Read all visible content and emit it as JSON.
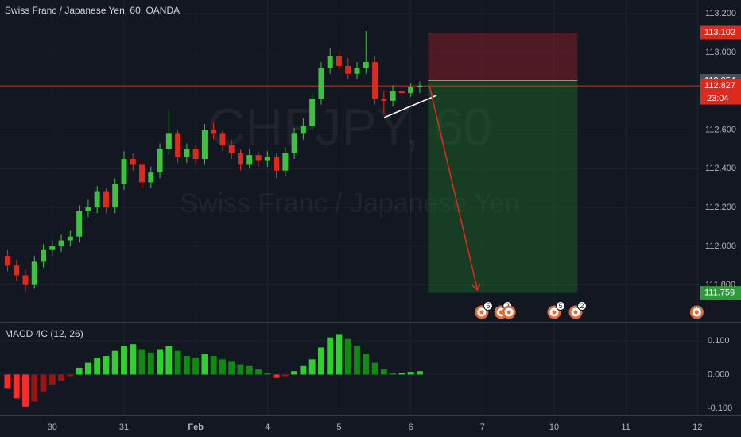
{
  "title": "Swiss Franc / Japanese Yen, 60, OANDA",
  "watermark": {
    "symbol": "CHFJPY, 60",
    "description": "Swiss Franc / Japanese Yen"
  },
  "countdown": "23:04",
  "chart_data": [
    {
      "type": "candlestick",
      "x": [
        -0.625,
        -0.5,
        -0.375,
        -0.25,
        -0.125,
        0,
        0.125,
        0.25,
        0.375,
        0.5,
        0.625,
        0.75,
        0.875,
        1,
        1.125,
        1.25,
        1.375,
        1.5,
        1.625,
        1.75,
        1.875,
        2,
        2.125,
        2.25,
        2.375,
        2.5,
        2.625,
        2.75,
        2.875,
        3,
        3.125,
        3.25,
        3.375,
        3.5,
        3.625,
        3.75,
        3.875,
        4,
        4.125,
        4.25,
        4.375,
        4.5,
        4.625,
        4.75,
        4.875,
        5,
        5.125
      ],
      "open": [
        111.95,
        111.9,
        111.85,
        111.8,
        111.92,
        111.98,
        112.0,
        112.03,
        112.05,
        112.18,
        112.2,
        112.28,
        112.2,
        112.32,
        112.45,
        112.42,
        112.33,
        112.38,
        112.5,
        112.58,
        112.46,
        112.5,
        112.45,
        112.6,
        112.58,
        112.52,
        112.48,
        112.42,
        112.47,
        112.44,
        112.46,
        112.39,
        112.48,
        112.58,
        112.62,
        112.76,
        112.92,
        112.98,
        112.93,
        112.89,
        112.92,
        112.95,
        112.76,
        112.75,
        112.8,
        112.79,
        112.82
      ],
      "high": [
        111.98,
        111.93,
        111.88,
        111.95,
        112.01,
        112.03,
        112.06,
        112.08,
        112.21,
        112.24,
        112.31,
        112.3,
        112.35,
        112.49,
        112.48,
        112.44,
        112.41,
        112.53,
        112.7,
        112.6,
        112.53,
        112.52,
        112.63,
        112.64,
        112.6,
        112.55,
        112.5,
        112.5,
        112.49,
        112.49,
        112.48,
        112.51,
        112.61,
        112.66,
        112.79,
        112.95,
        113.02,
        113.01,
        112.97,
        112.95,
        113.11,
        112.98,
        112.8,
        112.83,
        112.83,
        112.84,
        112.85
      ],
      "low": [
        111.87,
        111.82,
        111.76,
        111.78,
        111.89,
        111.95,
        111.97,
        112.0,
        112.02,
        112.15,
        112.17,
        112.17,
        112.17,
        112.29,
        112.39,
        112.3,
        112.3,
        112.35,
        112.47,
        112.43,
        112.43,
        112.42,
        112.42,
        112.55,
        112.49,
        112.45,
        112.39,
        112.4,
        112.41,
        112.41,
        112.35,
        112.36,
        112.45,
        112.55,
        112.6,
        112.73,
        112.89,
        112.9,
        112.86,
        112.86,
        112.89,
        112.73,
        112.68,
        112.72,
        112.76,
        112.77,
        112.79
      ],
      "close": [
        111.9,
        111.85,
        111.8,
        111.92,
        111.98,
        112.0,
        112.03,
        112.05,
        112.18,
        112.2,
        112.28,
        112.2,
        112.32,
        112.45,
        112.42,
        112.33,
        112.38,
        112.5,
        112.58,
        112.46,
        112.5,
        112.45,
        112.6,
        112.58,
        112.52,
        112.48,
        112.42,
        112.47,
        112.44,
        112.46,
        112.39,
        112.48,
        112.58,
        112.62,
        112.76,
        112.92,
        112.98,
        112.93,
        112.89,
        112.92,
        112.95,
        112.76,
        112.75,
        112.8,
        112.79,
        112.82,
        112.827
      ],
      "up_color": "#3ec13e",
      "down_color": "#e0291d",
      "xlim": [
        -0.73,
        9.03
      ],
      "xticks": [
        {
          "value": 0,
          "label": "30"
        },
        {
          "value": 1,
          "label": "31"
        },
        {
          "value": 2,
          "label": "Feb"
        },
        {
          "value": 3,
          "label": "4"
        },
        {
          "value": 4,
          "label": "5"
        },
        {
          "value": 5,
          "label": "6"
        },
        {
          "value": 6,
          "label": "7"
        },
        {
          "value": 7,
          "label": "10"
        },
        {
          "value": 8,
          "label": "11"
        },
        {
          "value": 9,
          "label": "12"
        }
      ],
      "ylim": [
        111.61,
        113.27
      ],
      "yticks": [
        {
          "value": 113.2,
          "label": "113.200"
        },
        {
          "value": 113,
          "label": "113.000"
        },
        {
          "value": 112.8,
          "label": "112.800"
        },
        {
          "value": 112.6,
          "label": "112.600"
        },
        {
          "value": 112.4,
          "label": "112.400"
        },
        {
          "value": 112.2,
          "label": "112.200"
        },
        {
          "value": 112,
          "label": "112.000"
        },
        {
          "value": 111.8,
          "label": "111.800"
        }
      ],
      "grid": true,
      "position": {
        "x": [
          5.24,
          7.325
        ],
        "entry": 112.854,
        "stop": 113.102,
        "target": 111.759
      },
      "trendline": {
        "x": [
          4.63,
          5.36
        ],
        "y": [
          112.664,
          112.778
        ]
      },
      "arrow": {
        "x": [
          5.26,
          5.93
        ],
        "y": [
          112.827,
          111.775
        ]
      },
      "events": [
        {
          "x": 5.99,
          "badge": "5"
        },
        {
          "x": 6.26,
          "badge": "2"
        },
        {
          "x": 6.37
        },
        {
          "x": 7.0,
          "badge": "5"
        },
        {
          "x": 7.3,
          "badge": "2"
        },
        {
          "x": 8.99
        }
      ]
    },
    {
      "type": "histogram",
      "title": "MACD 4C (12, 26)",
      "x": [
        -0.625,
        -0.5,
        -0.375,
        -0.25,
        -0.125,
        0,
        0.125,
        0.25,
        0.375,
        0.5,
        0.625,
        0.75,
        0.875,
        1,
        1.125,
        1.25,
        1.375,
        1.5,
        1.625,
        1.75,
        1.875,
        2,
        2.125,
        2.25,
        2.375,
        2.5,
        2.625,
        2.75,
        2.875,
        3,
        3.125,
        3.25,
        3.375,
        3.5,
        3.625,
        3.75,
        3.875,
        4,
        4.125,
        4.25,
        4.375,
        4.5,
        4.625,
        4.75,
        4.875,
        5,
        5.125
      ],
      "values": [
        -0.04,
        -0.07,
        -0.095,
        -0.08,
        -0.05,
        -0.03,
        -0.02,
        -0.005,
        0.02,
        0.035,
        0.05,
        0.055,
        0.07,
        0.085,
        0.09,
        0.075,
        0.065,
        0.075,
        0.085,
        0.07,
        0.055,
        0.05,
        0.06,
        0.055,
        0.045,
        0.04,
        0.03,
        0.025,
        0.015,
        0.005,
        -0.01,
        -0.005,
        0.01,
        0.025,
        0.045,
        0.08,
        0.11,
        0.12,
        0.105,
        0.085,
        0.06,
        0.035,
        0.015,
        0.005,
        0.005,
        0.008,
        0.01
      ],
      "ylim": [
        -0.119,
        0.154
      ],
      "yticks": [
        {
          "value": 0.1,
          "label": "0.100"
        },
        {
          "value": 0,
          "label": "0.000"
        },
        {
          "value": -0.1,
          "label": "-0.100"
        }
      ]
    }
  ]
}
